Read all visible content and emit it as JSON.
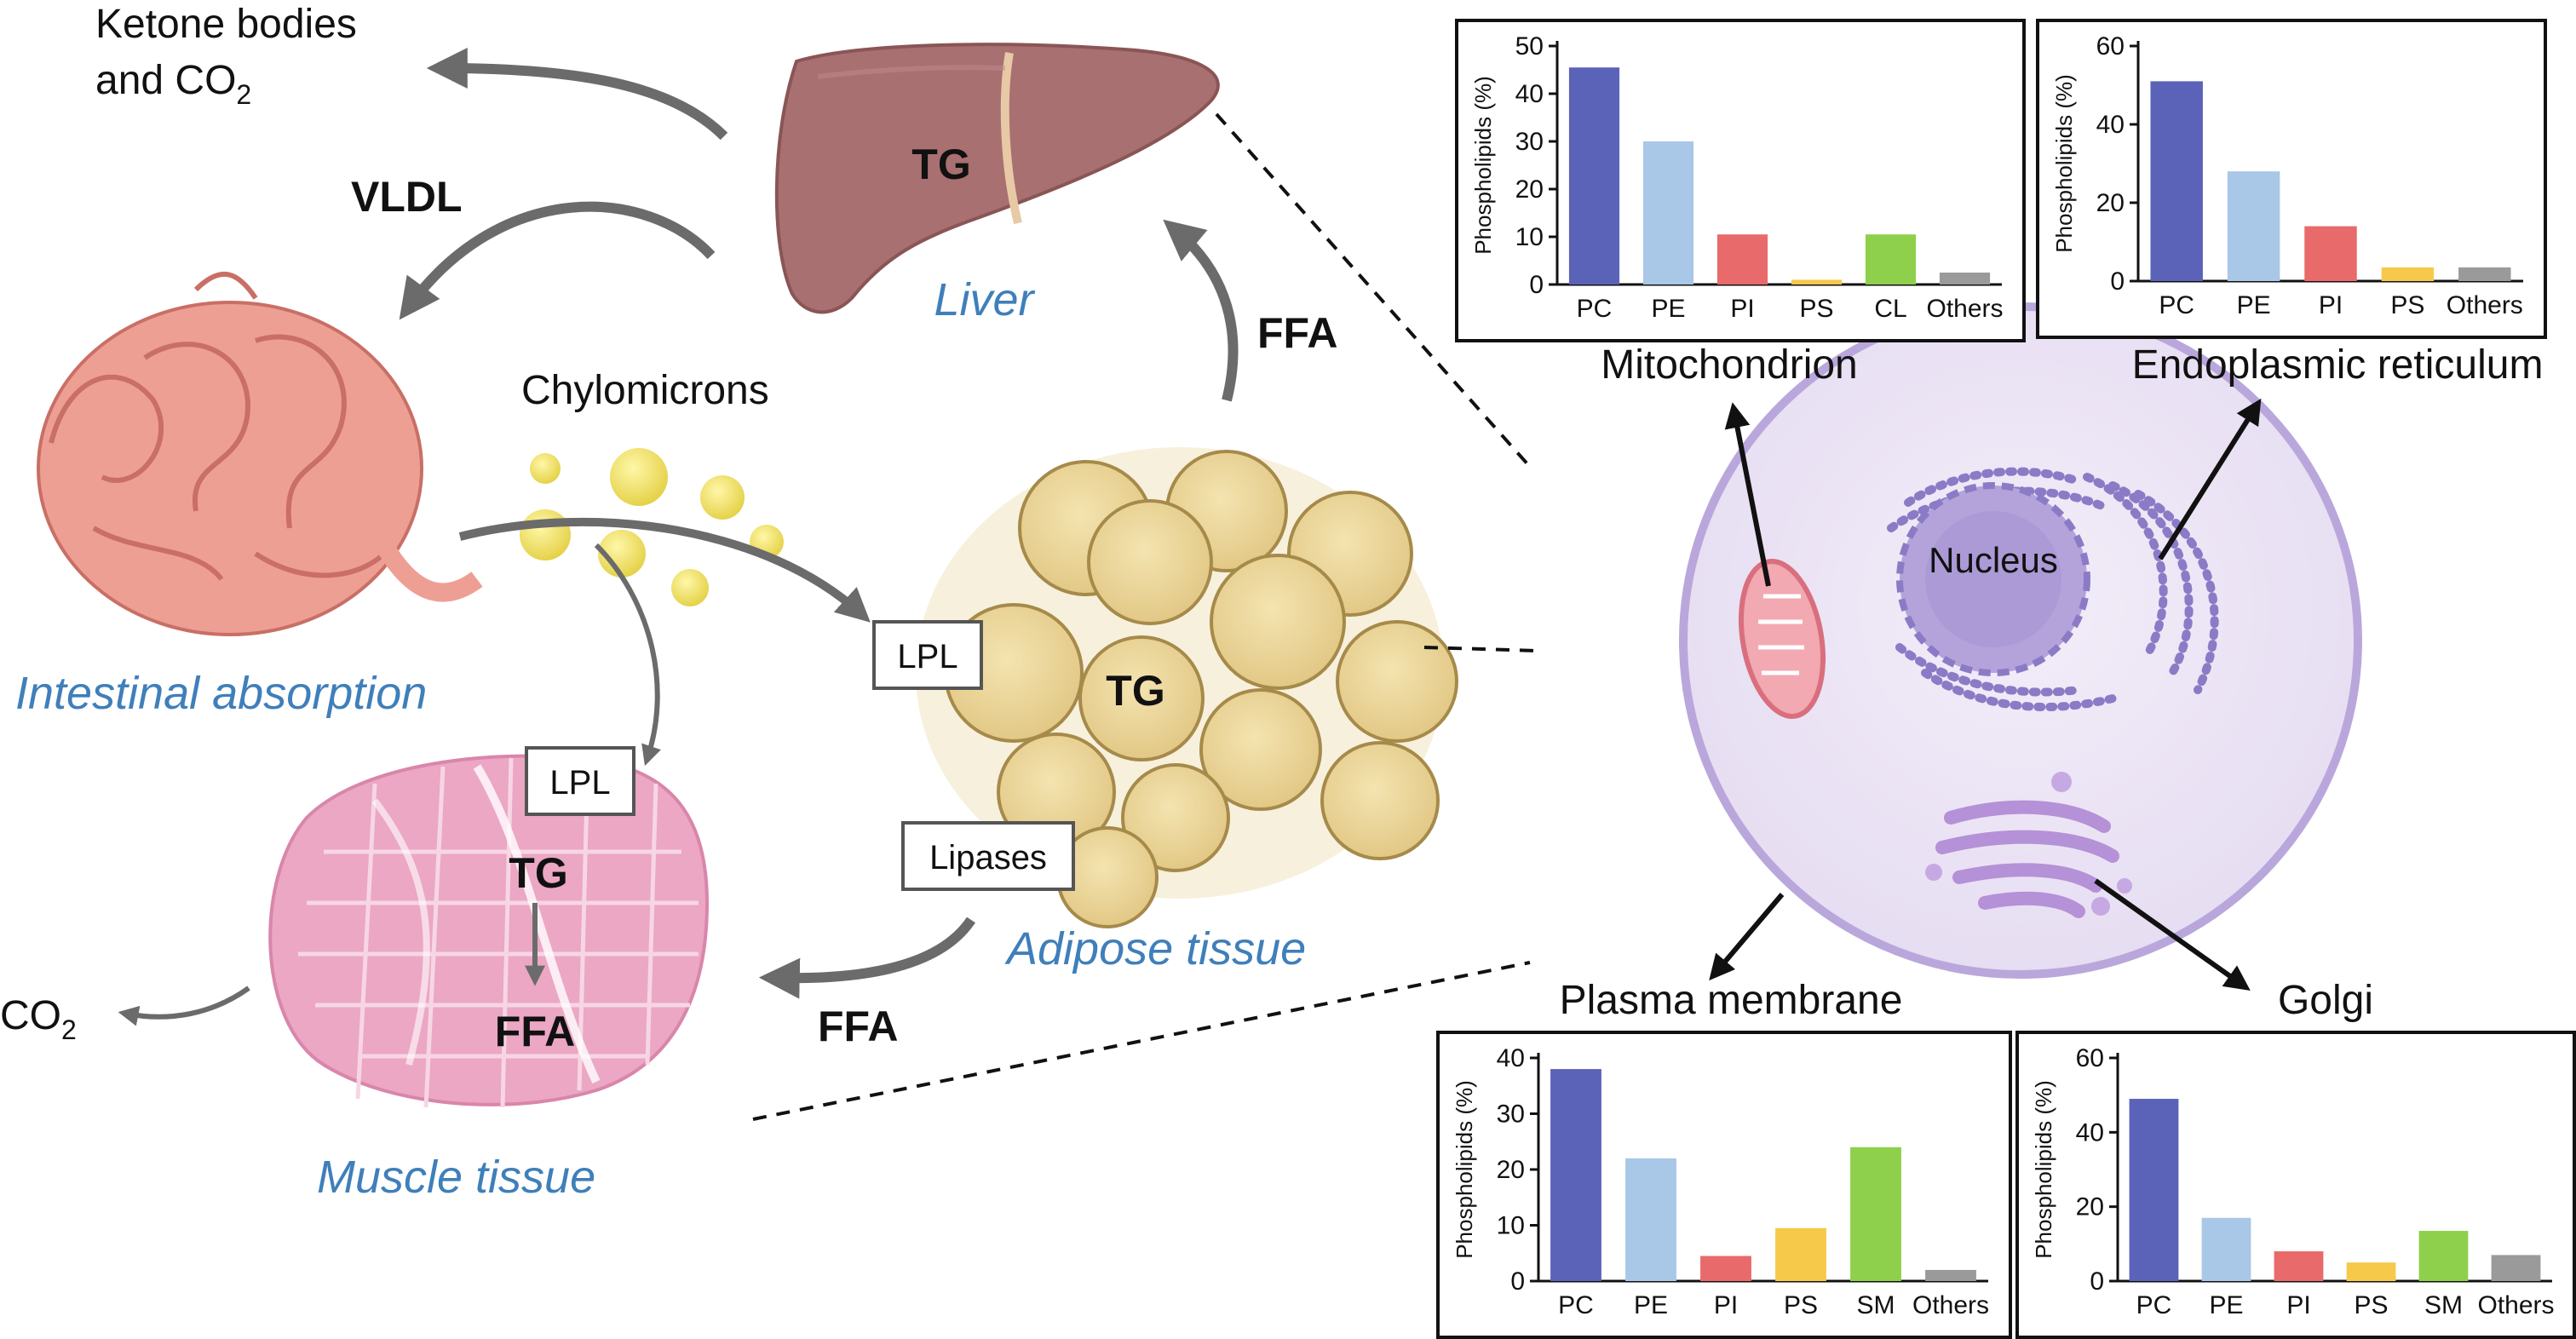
{
  "labels": {
    "ketone_line1": "Ketone bodies",
    "ketone_line2": "and CO",
    "ketone_sub": "2",
    "vldl": "VLDL",
    "liver_tg": "TG",
    "liver": "Liver",
    "ffa_top": "FFA",
    "chylomicrons": "Chylomicrons",
    "intestinal": "Intestinal absorption",
    "lpl_adipose": "LPL",
    "adipose_tg": "TG",
    "lipases": "Lipases",
    "adipose": "Adipose tissue",
    "ffa_bottom": "FFA",
    "lpl_muscle": "LPL",
    "muscle_tg": "TG",
    "muscle_ffa": "FFA",
    "co2_left": "CO",
    "co2_left_sub": "2",
    "muscle": "Muscle tissue",
    "nucleus": "Nucleus",
    "mitochondrion": "Mitochondrion",
    "er": "Endoplasmic reticulum",
    "plasma": "Plasma membrane",
    "golgi": "Golgi"
  },
  "colors": {
    "accent_blue": "#3f7fba",
    "arrow_gray": "#6b6b6b",
    "liver": "#a87070",
    "intestine": "#ee9f94",
    "adipocyte": "#ecd79a",
    "muscle": "#eba7c4",
    "cell": "#eae3f3",
    "cell_border": "#b9a7dc",
    "PC": "#5b63b8",
    "PE": "#a9c7e7",
    "PI": "#e86a6a",
    "PS": "#f6c94b",
    "CL": "#8ed04b",
    "SM": "#8ed04b",
    "Others": "#9a9a9a"
  },
  "chart_data": [
    {
      "type": "bar",
      "title": "Mitochondrion",
      "ylabel": "Phospholipids (%)",
      "categories": [
        "PC",
        "PE",
        "PI",
        "PS",
        "CL",
        "Others"
      ],
      "values": [
        45.5,
        30,
        10.5,
        1,
        10.5,
        2.5
      ],
      "ylim": [
        0,
        50
      ],
      "yticks": [
        0,
        10,
        20,
        30,
        40,
        50
      ]
    },
    {
      "type": "bar",
      "title": "Endoplasmic reticulum",
      "ylabel": "Phospholipids (%)",
      "categories": [
        "PC",
        "PE",
        "PI",
        "PS",
        "Others"
      ],
      "values": [
        51,
        28,
        14,
        3.5,
        3.5
      ],
      "ylim": [
        0,
        60
      ],
      "yticks": [
        0,
        20,
        40,
        60
      ]
    },
    {
      "type": "bar",
      "title": "Plasma membrane",
      "ylabel": "Phospholipids (%)",
      "categories": [
        "PC",
        "PE",
        "PI",
        "PS",
        "SM",
        "Others"
      ],
      "values": [
        38,
        22,
        4.5,
        9.5,
        24,
        2
      ],
      "ylim": [
        0,
        40
      ],
      "yticks": [
        0,
        10,
        20,
        30,
        40
      ]
    },
    {
      "type": "bar",
      "title": "Golgi",
      "ylabel": "Phospholipids (%)",
      "categories": [
        "PC",
        "PE",
        "PI",
        "PS",
        "SM",
        "Others"
      ],
      "values": [
        49,
        17,
        8,
        5,
        13.5,
        7
      ],
      "ylim": [
        0,
        60
      ],
      "yticks": [
        0,
        20,
        40,
        60
      ]
    }
  ]
}
